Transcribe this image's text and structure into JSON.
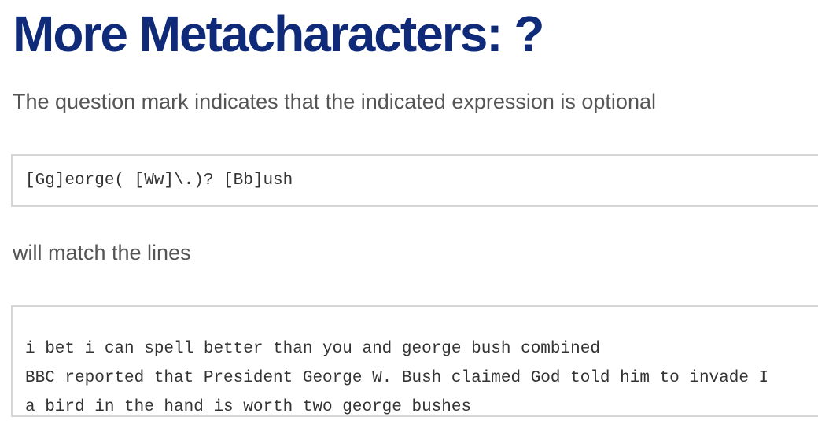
{
  "header": {
    "title": "More Metacharacters: ?"
  },
  "intro": "The question mark indicates that the indicated expression is optional",
  "code": "[Gg]eorge( [Ww]\\.)? [Bb]ush",
  "middle": "will match the lines",
  "lines": [
    "i bet i can spell better than you and george bush combined",
    "BBC reported that President George W. Bush claimed God told him to invade I",
    "a bird in the hand is worth two george bushes"
  ]
}
